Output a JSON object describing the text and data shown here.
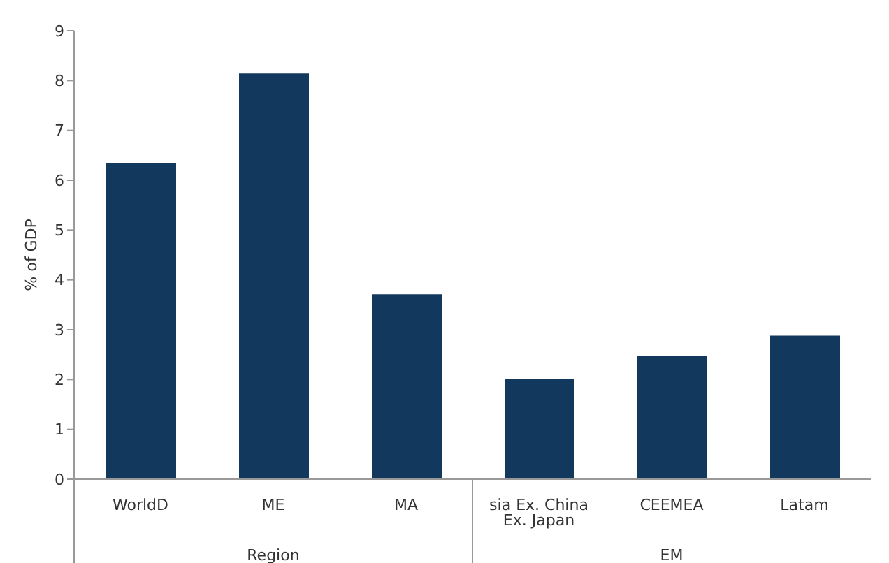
{
  "chart_data": {
    "type": "bar",
    "ylabel": "% of GDP",
    "categories": [
      "WorldD",
      "ME",
      "MA",
      "sia Ex. China Ex. Japan",
      "CEEMEA",
      "Latam"
    ],
    "values": [
      6.34,
      8.14,
      3.71,
      2.02,
      2.47,
      2.88
    ],
    "color": "#12385e",
    "ylim": [
      0,
      9
    ],
    "yticks": [
      0,
      1,
      2,
      3,
      4,
      5,
      6,
      7,
      8,
      9
    ],
    "annotations": [
      "Region",
      "EM"
    ],
    "grid": false,
    "legend": false
  }
}
